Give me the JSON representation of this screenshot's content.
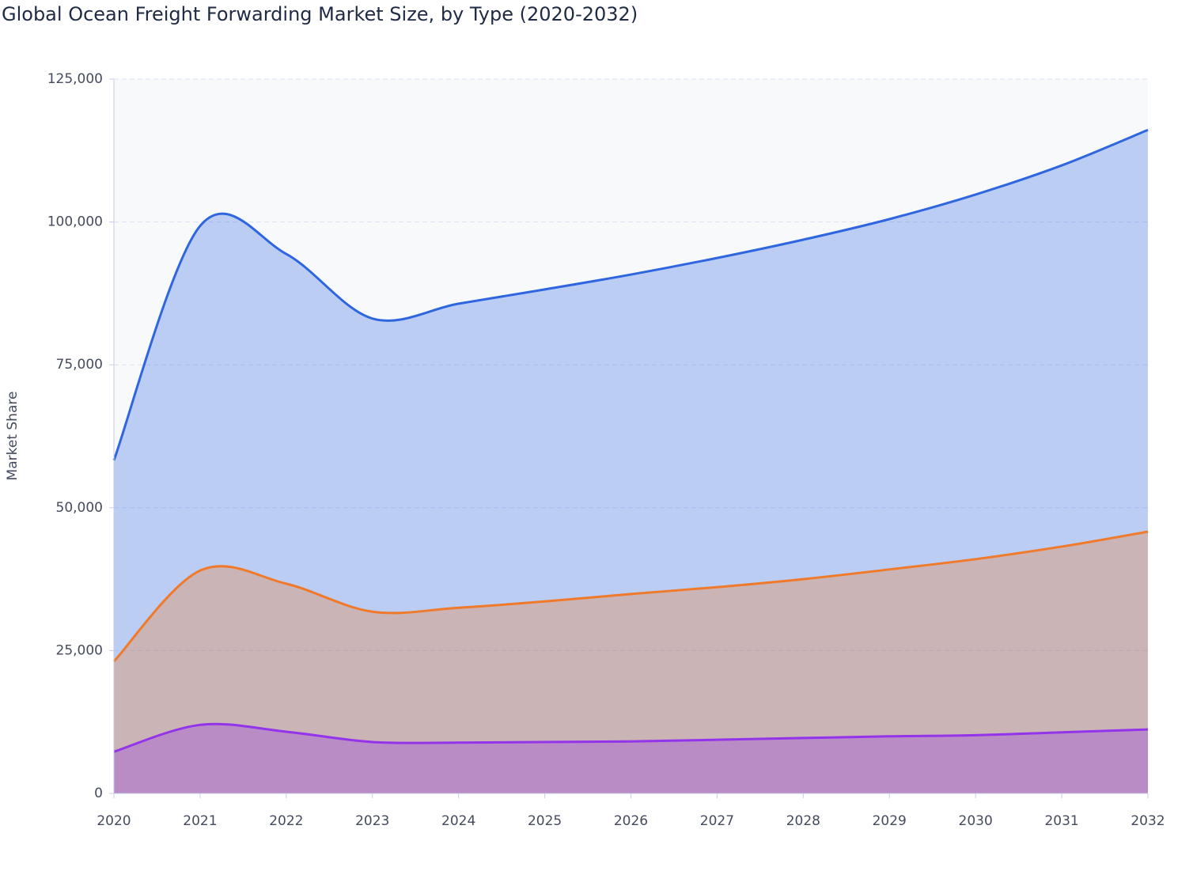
{
  "chart_data": {
    "type": "stacked_area",
    "title": "Global Ocean Freight Forwarding Market Size, by Type (2020-2032)",
    "y_label": "Market Share",
    "categories": [
      "2020",
      "2021",
      "2022",
      "2023",
      "2024",
      "2025",
      "2026",
      "2027",
      "2028",
      "2029",
      "2030",
      "2031",
      "2032"
    ],
    "series": [
      {
        "color": "#9333ea",
        "values": [
          7300,
          12000,
          10800,
          9000,
          8900,
          9000,
          9100,
          9400,
          9700,
          10000,
          10200,
          10700,
          11200
        ]
      },
      {
        "color": "#f07a2a",
        "values": [
          15800,
          27000,
          25900,
          22800,
          23600,
          24600,
          25800,
          26700,
          27800,
          29200,
          30800,
          32500,
          34600
        ]
      },
      {
        "color": "#2f66e0",
        "values": [
          35200,
          60300,
          57700,
          51300,
          53200,
          54600,
          55900,
          57600,
          59400,
          61300,
          63800,
          66700,
          70300
        ]
      }
    ],
    "ylim": [
      0,
      125000
    ],
    "yticks": [
      0,
      {
        "value": 25000,
        "label": "25,000"
      },
      {
        "value": 50000,
        "label": "50,000"
      },
      {
        "value": 75000,
        "label": "75,000"
      },
      {
        "value": 100000,
        "label": "100,000"
      },
      {
        "value": 125000,
        "label": "125,000"
      }
    ],
    "grid": true
  }
}
